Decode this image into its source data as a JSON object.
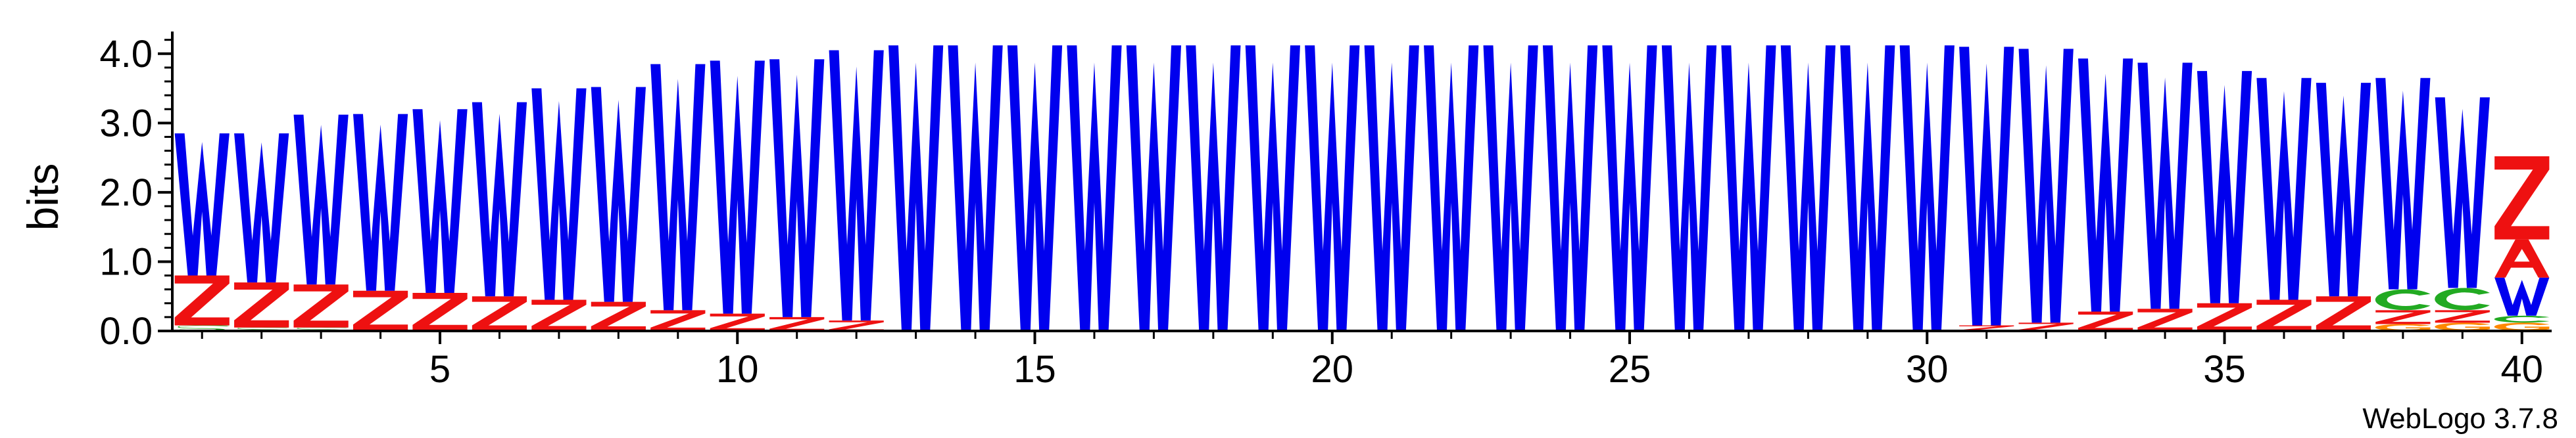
{
  "chart_data": {
    "type": "sequence-logo",
    "ylabel": "bits",
    "ylim": [
      0,
      4.32
    ],
    "yticks": [
      "0.0",
      "1.0",
      "2.0",
      "3.0",
      "4.0"
    ],
    "xlim": [
      0.5,
      40.5
    ],
    "xticks": [
      "5",
      "10",
      "15",
      "20",
      "25",
      "30",
      "35",
      "40"
    ],
    "footer": "WebLogo 3.7.8",
    "colors": {
      "W": "#0000ee",
      "Z": "#ee1111",
      "A": "#ee1111",
      "C": "#22aa22",
      "G": "#ff8800",
      "S": "#22aa22"
    },
    "positions": [
      {
        "pos": 1,
        "stack": [
          {
            "l": "S",
            "h": 0.08
          },
          {
            "l": "Z",
            "h": 0.72
          },
          {
            "l": "W",
            "h": 2.05
          }
        ]
      },
      {
        "pos": 2,
        "stack": [
          {
            "l": "S",
            "h": 0.05
          },
          {
            "l": "Z",
            "h": 0.65
          },
          {
            "l": "W",
            "h": 2.15
          }
        ]
      },
      {
        "pos": 3,
        "stack": [
          {
            "l": "S",
            "h": 0.05
          },
          {
            "l": "Z",
            "h": 0.62
          },
          {
            "l": "W",
            "h": 2.45
          }
        ]
      },
      {
        "pos": 4,
        "stack": [
          {
            "l": "Z",
            "h": 0.58
          },
          {
            "l": "W",
            "h": 2.55
          }
        ]
      },
      {
        "pos": 5,
        "stack": [
          {
            "l": "Z",
            "h": 0.55
          },
          {
            "l": "W",
            "h": 2.65
          }
        ]
      },
      {
        "pos": 6,
        "stack": [
          {
            "l": "Z",
            "h": 0.5
          },
          {
            "l": "W",
            "h": 2.8
          }
        ]
      },
      {
        "pos": 7,
        "stack": [
          {
            "l": "Z",
            "h": 0.45
          },
          {
            "l": "W",
            "h": 3.05
          }
        ]
      },
      {
        "pos": 8,
        "stack": [
          {
            "l": "Z",
            "h": 0.42
          },
          {
            "l": "W",
            "h": 3.1
          }
        ]
      },
      {
        "pos": 9,
        "stack": [
          {
            "l": "Z",
            "h": 0.3
          },
          {
            "l": "W",
            "h": 3.55
          }
        ]
      },
      {
        "pos": 10,
        "stack": [
          {
            "l": "Z",
            "h": 0.25
          },
          {
            "l": "W",
            "h": 3.65
          }
        ]
      },
      {
        "pos": 11,
        "stack": [
          {
            "l": "Z",
            "h": 0.2
          },
          {
            "l": "W",
            "h": 3.72
          }
        ]
      },
      {
        "pos": 12,
        "stack": [
          {
            "l": "Z",
            "h": 0.15
          },
          {
            "l": "W",
            "h": 3.9
          }
        ]
      },
      {
        "pos": 13,
        "stack": [
          {
            "l": "W",
            "h": 4.12
          }
        ]
      },
      {
        "pos": 14,
        "stack": [
          {
            "l": "W",
            "h": 4.12
          }
        ]
      },
      {
        "pos": 15,
        "stack": [
          {
            "l": "W",
            "h": 4.12
          }
        ]
      },
      {
        "pos": 16,
        "stack": [
          {
            "l": "W",
            "h": 4.12
          }
        ]
      },
      {
        "pos": 17,
        "stack": [
          {
            "l": "W",
            "h": 4.12
          }
        ]
      },
      {
        "pos": 18,
        "stack": [
          {
            "l": "W",
            "h": 4.12
          }
        ]
      },
      {
        "pos": 19,
        "stack": [
          {
            "l": "W",
            "h": 4.12
          }
        ]
      },
      {
        "pos": 20,
        "stack": [
          {
            "l": "W",
            "h": 4.12
          }
        ]
      },
      {
        "pos": 21,
        "stack": [
          {
            "l": "W",
            "h": 4.12
          }
        ]
      },
      {
        "pos": 22,
        "stack": [
          {
            "l": "W",
            "h": 4.12
          }
        ]
      },
      {
        "pos": 23,
        "stack": [
          {
            "l": "W",
            "h": 4.12
          }
        ]
      },
      {
        "pos": 24,
        "stack": [
          {
            "l": "W",
            "h": 4.12
          }
        ]
      },
      {
        "pos": 25,
        "stack": [
          {
            "l": "W",
            "h": 4.12
          }
        ]
      },
      {
        "pos": 26,
        "stack": [
          {
            "l": "W",
            "h": 4.12
          }
        ]
      },
      {
        "pos": 27,
        "stack": [
          {
            "l": "W",
            "h": 4.12
          }
        ]
      },
      {
        "pos": 28,
        "stack": [
          {
            "l": "W",
            "h": 4.12
          }
        ]
      },
      {
        "pos": 29,
        "stack": [
          {
            "l": "W",
            "h": 4.12
          }
        ]
      },
      {
        "pos": 30,
        "stack": [
          {
            "l": "W",
            "h": 4.12
          }
        ]
      },
      {
        "pos": 31,
        "stack": [
          {
            "l": "Z",
            "h": 0.08
          },
          {
            "l": "W",
            "h": 4.02
          }
        ]
      },
      {
        "pos": 32,
        "stack": [
          {
            "l": "Z",
            "h": 0.12
          },
          {
            "l": "W",
            "h": 3.95
          }
        ]
      },
      {
        "pos": 33,
        "stack": [
          {
            "l": "Z",
            "h": 0.28
          },
          {
            "l": "W",
            "h": 3.65
          }
        ]
      },
      {
        "pos": 34,
        "stack": [
          {
            "l": "Z",
            "h": 0.32
          },
          {
            "l": "W",
            "h": 3.55
          }
        ]
      },
      {
        "pos": 35,
        "stack": [
          {
            "l": "Z",
            "h": 0.4
          },
          {
            "l": "W",
            "h": 3.35
          }
        ]
      },
      {
        "pos": 36,
        "stack": [
          {
            "l": "Z",
            "h": 0.45
          },
          {
            "l": "W",
            "h": 3.2
          }
        ]
      },
      {
        "pos": 37,
        "stack": [
          {
            "l": "Z",
            "h": 0.5
          },
          {
            "l": "W",
            "h": 3.08
          }
        ]
      },
      {
        "pos": 38,
        "stack": [
          {
            "l": "G",
            "h": 0.1
          },
          {
            "l": "Z",
            "h": 0.2
          },
          {
            "l": "C",
            "h": 0.3
          },
          {
            "l": "W",
            "h": 3.05
          }
        ]
      },
      {
        "pos": 39,
        "stack": [
          {
            "l": "G",
            "h": 0.12
          },
          {
            "l": "Z",
            "h": 0.18
          },
          {
            "l": "C",
            "h": 0.32
          },
          {
            "l": "W",
            "h": 2.75
          }
        ]
      },
      {
        "pos": 40,
        "stack": [
          {
            "l": "G",
            "h": 0.12
          },
          {
            "l": "C",
            "h": 0.1
          },
          {
            "l": "W",
            "h": 0.55
          },
          {
            "l": "A",
            "h": 0.55
          },
          {
            "l": "Z",
            "h": 1.2
          }
        ]
      }
    ]
  }
}
